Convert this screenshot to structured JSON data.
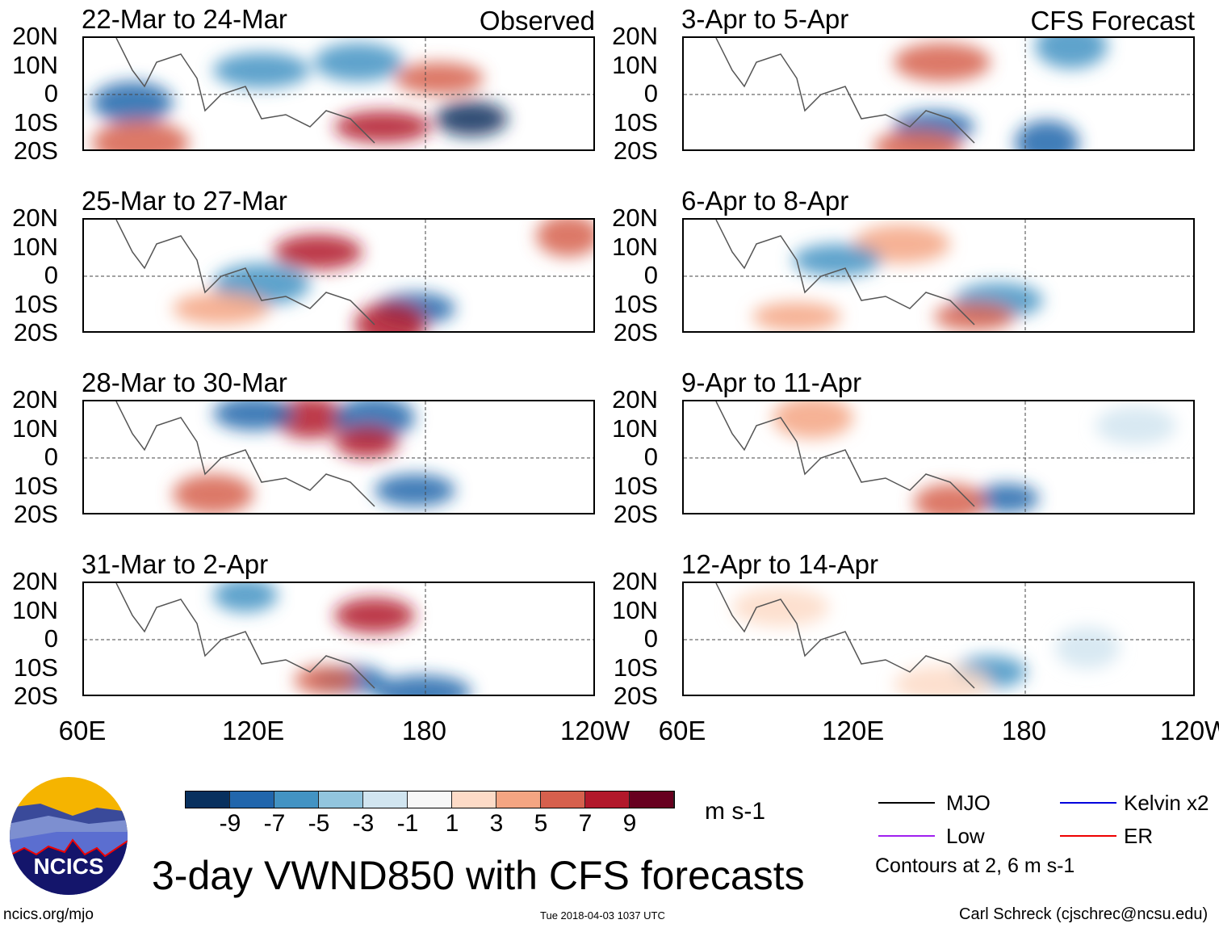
{
  "panels_left": [
    {
      "title": "22-Mar to 24-Mar",
      "tag": "Observed"
    },
    {
      "title": "25-Mar to 27-Mar"
    },
    {
      "title": "28-Mar to 30-Mar"
    },
    {
      "title": "31-Mar to 2-Apr"
    }
  ],
  "panels_right": [
    {
      "title": "3-Apr to 5-Apr",
      "tag": "CFS Forecast"
    },
    {
      "title": "6-Apr to 8-Apr"
    },
    {
      "title": "9-Apr to 11-Apr"
    },
    {
      "title": "12-Apr to 14-Apr"
    }
  ],
  "lat_labels": [
    "20N",
    "10N",
    "0",
    "10S",
    "20S"
  ],
  "lon_labels": [
    "60E",
    "120E",
    "180",
    "120W"
  ],
  "colorbar": {
    "labels": [
      "-9",
      "-7",
      "-5",
      "-3",
      "-1",
      "1",
      "3",
      "5",
      "7",
      "9"
    ],
    "colors": [
      "#08305e",
      "#2166ac",
      "#4393c3",
      "#92c5de",
      "#d1e5f0",
      "#f7f7f7",
      "#fddbc7",
      "#f4a582",
      "#d6604d",
      "#b2182b",
      "#67001f"
    ],
    "units": "m s-1"
  },
  "legend": {
    "items": [
      {
        "label": "MJO",
        "color": "#000000"
      },
      {
        "label": "Kelvin x2",
        "color": "#0000dd"
      },
      {
        "label": "Low",
        "color": "#a020f0"
      },
      {
        "label": "ER",
        "color": "#ee0000"
      }
    ],
    "note": "Contours at 2, 6 m s-1"
  },
  "title": "3-day VWND850 with CFS forecasts",
  "logo_text": "NCICS",
  "url": "ncics.org/mjo",
  "timestamp": "Tue 2018-04-03 1037 UTC",
  "credit": "Carl Schreck (cjschrec@ncsu.edu)"
}
